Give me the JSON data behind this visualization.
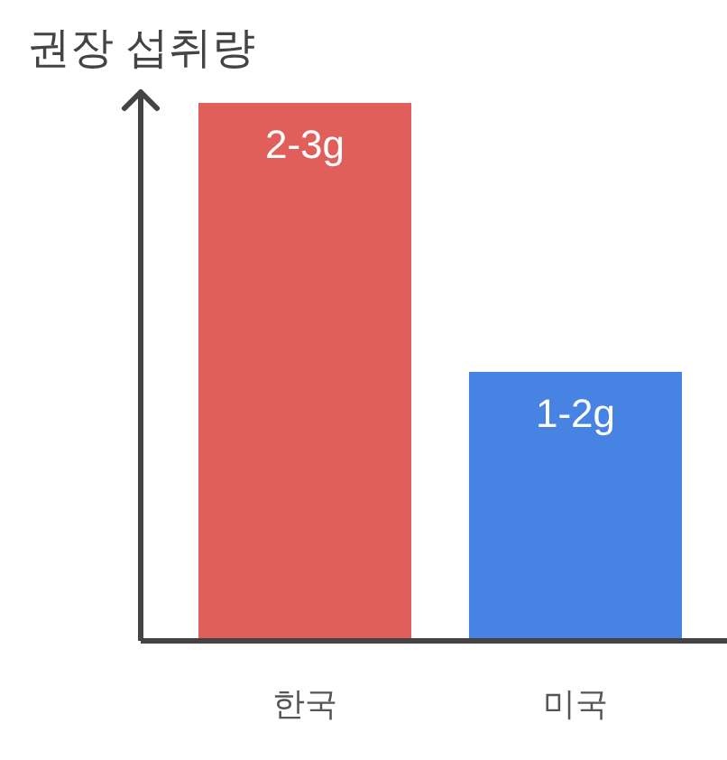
{
  "chart_data": {
    "type": "bar",
    "ylabel": "권장 섭취량",
    "categories": [
      "한국",
      "미국"
    ],
    "values": [
      2,
      1
    ],
    "colors": [
      "#e15f5a",
      "#4783e3"
    ],
    "value_labels": [
      "2-3g",
      "1-2g"
    ]
  }
}
